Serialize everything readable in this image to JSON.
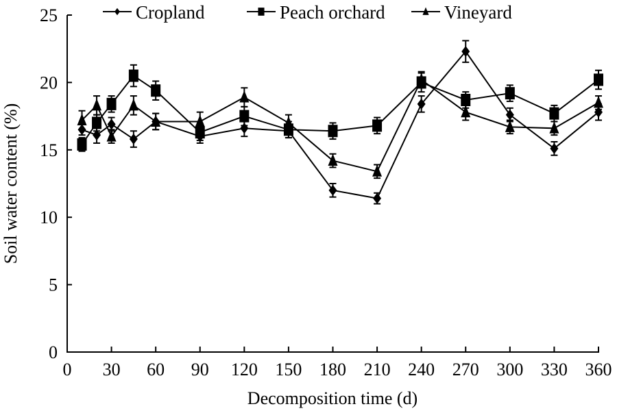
{
  "chart_data": {
    "type": "line",
    "title": "",
    "xlabel": "Decomposition time (d)",
    "ylabel": "Soil water content (%)",
    "xlim": [
      0,
      360
    ],
    "ylim": [
      0,
      25
    ],
    "xticks": [
      0,
      30,
      60,
      90,
      120,
      150,
      180,
      210,
      240,
      270,
      300,
      330,
      360
    ],
    "yticks": [
      0,
      5,
      10,
      15,
      20,
      25
    ],
    "grid": false,
    "legend_position": "top",
    "x": [
      10,
      20,
      30,
      45,
      60,
      90,
      120,
      150,
      180,
      210,
      240,
      270,
      300,
      330,
      360
    ],
    "series": [
      {
        "name": "Cropland",
        "marker": "diamond",
        "values": [
          16.5,
          16.1,
          16.9,
          15.8,
          17.1,
          16.0,
          16.6,
          16.4,
          12.0,
          11.4,
          18.4,
          22.3,
          17.6,
          15.1,
          17.8
        ],
        "errors": [
          0.4,
          0.6,
          0.5,
          0.6,
          0.6,
          0.5,
          0.6,
          0.5,
          0.5,
          0.4,
          0.6,
          0.8,
          0.5,
          0.5,
          0.6
        ]
      },
      {
        "name": "Peach orchard",
        "marker": "square",
        "values": [
          15.4,
          17.0,
          18.4,
          20.5,
          19.4,
          16.3,
          17.5,
          16.5,
          16.4,
          16.8,
          20.0,
          18.7,
          19.2,
          17.7,
          20.2
        ],
        "errors": [
          0.5,
          0.6,
          0.6,
          0.8,
          0.7,
          0.6,
          0.7,
          0.6,
          0.6,
          0.6,
          0.7,
          0.6,
          0.6,
          0.6,
          0.7
        ]
      },
      {
        "name": "Vineyard",
        "marker": "triangle",
        "values": [
          17.2,
          18.3,
          16.0,
          18.3,
          17.1,
          17.1,
          18.9,
          17.0,
          14.2,
          13.4,
          20.2,
          17.8,
          16.7,
          16.6,
          18.5
        ],
        "errors": [
          0.7,
          0.7,
          0.5,
          0.7,
          0.6,
          0.7,
          0.7,
          0.6,
          0.5,
          0.5,
          0.6,
          0.6,
          0.5,
          0.5,
          0.5
        ]
      }
    ],
    "colors": {
      "line": "#000000",
      "background": "#ffffff"
    }
  }
}
